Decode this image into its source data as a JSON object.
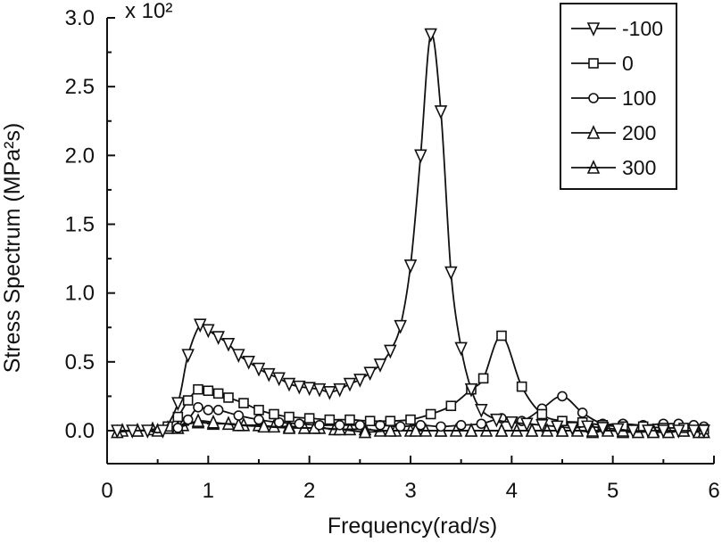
{
  "chart_data": {
    "type": "line",
    "xlabel": "Frequency(rad/s)",
    "ylabel": "Stress Spectrum (MPa²s)",
    "multiplier": "x 10²",
    "xlim": [
      0,
      6
    ],
    "ylim": [
      -0.05,
      3.0
    ],
    "xticks": [
      0,
      1,
      2,
      3,
      4,
      5,
      6
    ],
    "yticks": [
      "0.0",
      "0.5",
      "1.0",
      "1.5",
      "2.0",
      "2.5",
      "3.0"
    ],
    "legend_position": "top-right",
    "series": [
      {
        "name": "-100",
        "marker": "triangle-down",
        "x": [
          0.1,
          0.25,
          0.4,
          0.55,
          0.7,
          0.8,
          0.92,
          1.0,
          1.1,
          1.2,
          1.3,
          1.4,
          1.5,
          1.6,
          1.7,
          1.8,
          1.9,
          2.0,
          2.1,
          2.2,
          2.3,
          2.4,
          2.5,
          2.6,
          2.7,
          2.8,
          2.9,
          3.0,
          3.1,
          3.2,
          3.3,
          3.4,
          3.5,
          3.6,
          3.7,
          3.85,
          4.0,
          4.15,
          4.3,
          4.45,
          4.6,
          4.75,
          4.9,
          5.05,
          5.2,
          5.35,
          5.5,
          5.65,
          5.8,
          5.9
        ],
        "y": [
          0.0,
          0.0,
          0.0,
          0.0,
          0.2,
          0.55,
          0.77,
          0.73,
          0.68,
          0.63,
          0.55,
          0.5,
          0.45,
          0.41,
          0.38,
          0.34,
          0.32,
          0.31,
          0.3,
          0.28,
          0.3,
          0.34,
          0.37,
          0.42,
          0.48,
          0.58,
          0.76,
          1.2,
          2.0,
          2.88,
          2.32,
          1.15,
          0.6,
          0.3,
          0.15,
          0.08,
          0.06,
          0.05,
          0.04,
          0.03,
          0.02,
          0.03,
          0.02,
          0.01,
          0.0,
          0.0,
          0.0,
          0.0,
          0.0,
          0.0
        ]
      },
      {
        "name": "0",
        "marker": "square",
        "x": [
          0.6,
          0.7,
          0.8,
          0.9,
          1.0,
          1.1,
          1.2,
          1.35,
          1.5,
          1.65,
          1.8,
          2.0,
          2.2,
          2.4,
          2.6,
          2.8,
          3.0,
          3.2,
          3.4,
          3.6,
          3.72,
          3.9,
          4.1,
          4.3,
          4.5,
          4.7,
          4.9,
          5.1,
          5.3,
          5.5,
          5.7,
          5.9
        ],
        "y": [
          0.03,
          0.1,
          0.22,
          0.3,
          0.29,
          0.27,
          0.24,
          0.2,
          0.15,
          0.12,
          0.1,
          0.09,
          0.08,
          0.08,
          0.07,
          0.07,
          0.08,
          0.12,
          0.18,
          0.3,
          0.38,
          0.69,
          0.32,
          0.12,
          0.07,
          0.06,
          0.04,
          0.03,
          0.03,
          0.02,
          0.02,
          0.01
        ]
      },
      {
        "name": "100",
        "marker": "circle",
        "x": [
          0.7,
          0.8,
          0.9,
          1.0,
          1.1,
          1.3,
          1.5,
          1.7,
          1.9,
          2.1,
          2.3,
          2.5,
          2.7,
          2.9,
          3.1,
          3.3,
          3.5,
          3.7,
          3.9,
          4.1,
          4.3,
          4.5,
          4.7,
          4.9,
          5.1,
          5.3,
          5.5,
          5.65,
          5.8,
          5.9
        ],
        "y": [
          0.02,
          0.08,
          0.17,
          0.15,
          0.15,
          0.11,
          0.08,
          0.06,
          0.05,
          0.04,
          0.04,
          0.04,
          0.04,
          0.03,
          0.04,
          0.03,
          0.04,
          0.05,
          0.09,
          0.07,
          0.16,
          0.25,
          0.13,
          0.05,
          0.05,
          0.04,
          0.05,
          0.05,
          0.04,
          0.03
        ]
      },
      {
        "name": "200",
        "marker": "triangle-up",
        "x": [
          0.1,
          0.3,
          0.5,
          0.7,
          0.9,
          1.05,
          1.3,
          1.55,
          1.8,
          2.05,
          2.3,
          2.55,
          2.8,
          3.05,
          3.3,
          3.6,
          3.9,
          4.2,
          4.5,
          4.8,
          5.1,
          5.4,
          5.7,
          5.9
        ],
        "y": [
          -0.01,
          0.0,
          0.0,
          0.02,
          0.07,
          0.06,
          0.04,
          0.03,
          0.02,
          0.02,
          0.01,
          -0.01,
          0.0,
          0.0,
          0.0,
          0.0,
          0.0,
          0.0,
          0.0,
          0.0,
          0.0,
          -0.01,
          0.0,
          -0.01
        ],
        "marker_x": [
          0.1,
          0.3,
          0.5,
          0.7,
          0.9,
          1.05,
          1.3,
          1.55,
          1.8,
          2.05,
          2.3,
          2.55,
          2.8,
          3.05,
          3.3,
          3.6,
          3.9,
          4.2,
          4.5,
          4.8,
          5.1,
          5.4,
          5.7,
          5.9
        ]
      },
      {
        "name": "300",
        "marker": "star",
        "x": [
          0.15,
          0.3,
          0.45,
          0.6,
          0.75,
          0.9,
          1.05,
          1.2,
          1.35,
          1.5,
          1.65,
          1.8,
          1.95,
          2.1,
          2.25,
          2.4,
          2.55,
          2.7,
          2.85,
          3.0,
          3.15,
          3.3,
          3.45,
          3.6,
          3.75,
          3.9,
          4.05,
          4.2,
          4.35,
          4.5,
          4.65,
          4.8,
          4.95,
          5.1,
          5.25,
          5.4,
          5.55,
          5.7,
          5.85
        ],
        "y": [
          0.0,
          0.0,
          0.01,
          0.02,
          0.04,
          0.06,
          0.05,
          0.05,
          0.04,
          0.04,
          0.03,
          0.03,
          0.02,
          0.02,
          0.01,
          0.01,
          0.01,
          0.0,
          0.0,
          0.0,
          0.0,
          0.0,
          0.0,
          0.0,
          0.0,
          0.0,
          0.0,
          0.0,
          0.0,
          0.0,
          0.0,
          -0.01,
          0.0,
          -0.01,
          -0.01,
          0.0,
          -0.01,
          0.0,
          -0.01
        ]
      }
    ]
  }
}
